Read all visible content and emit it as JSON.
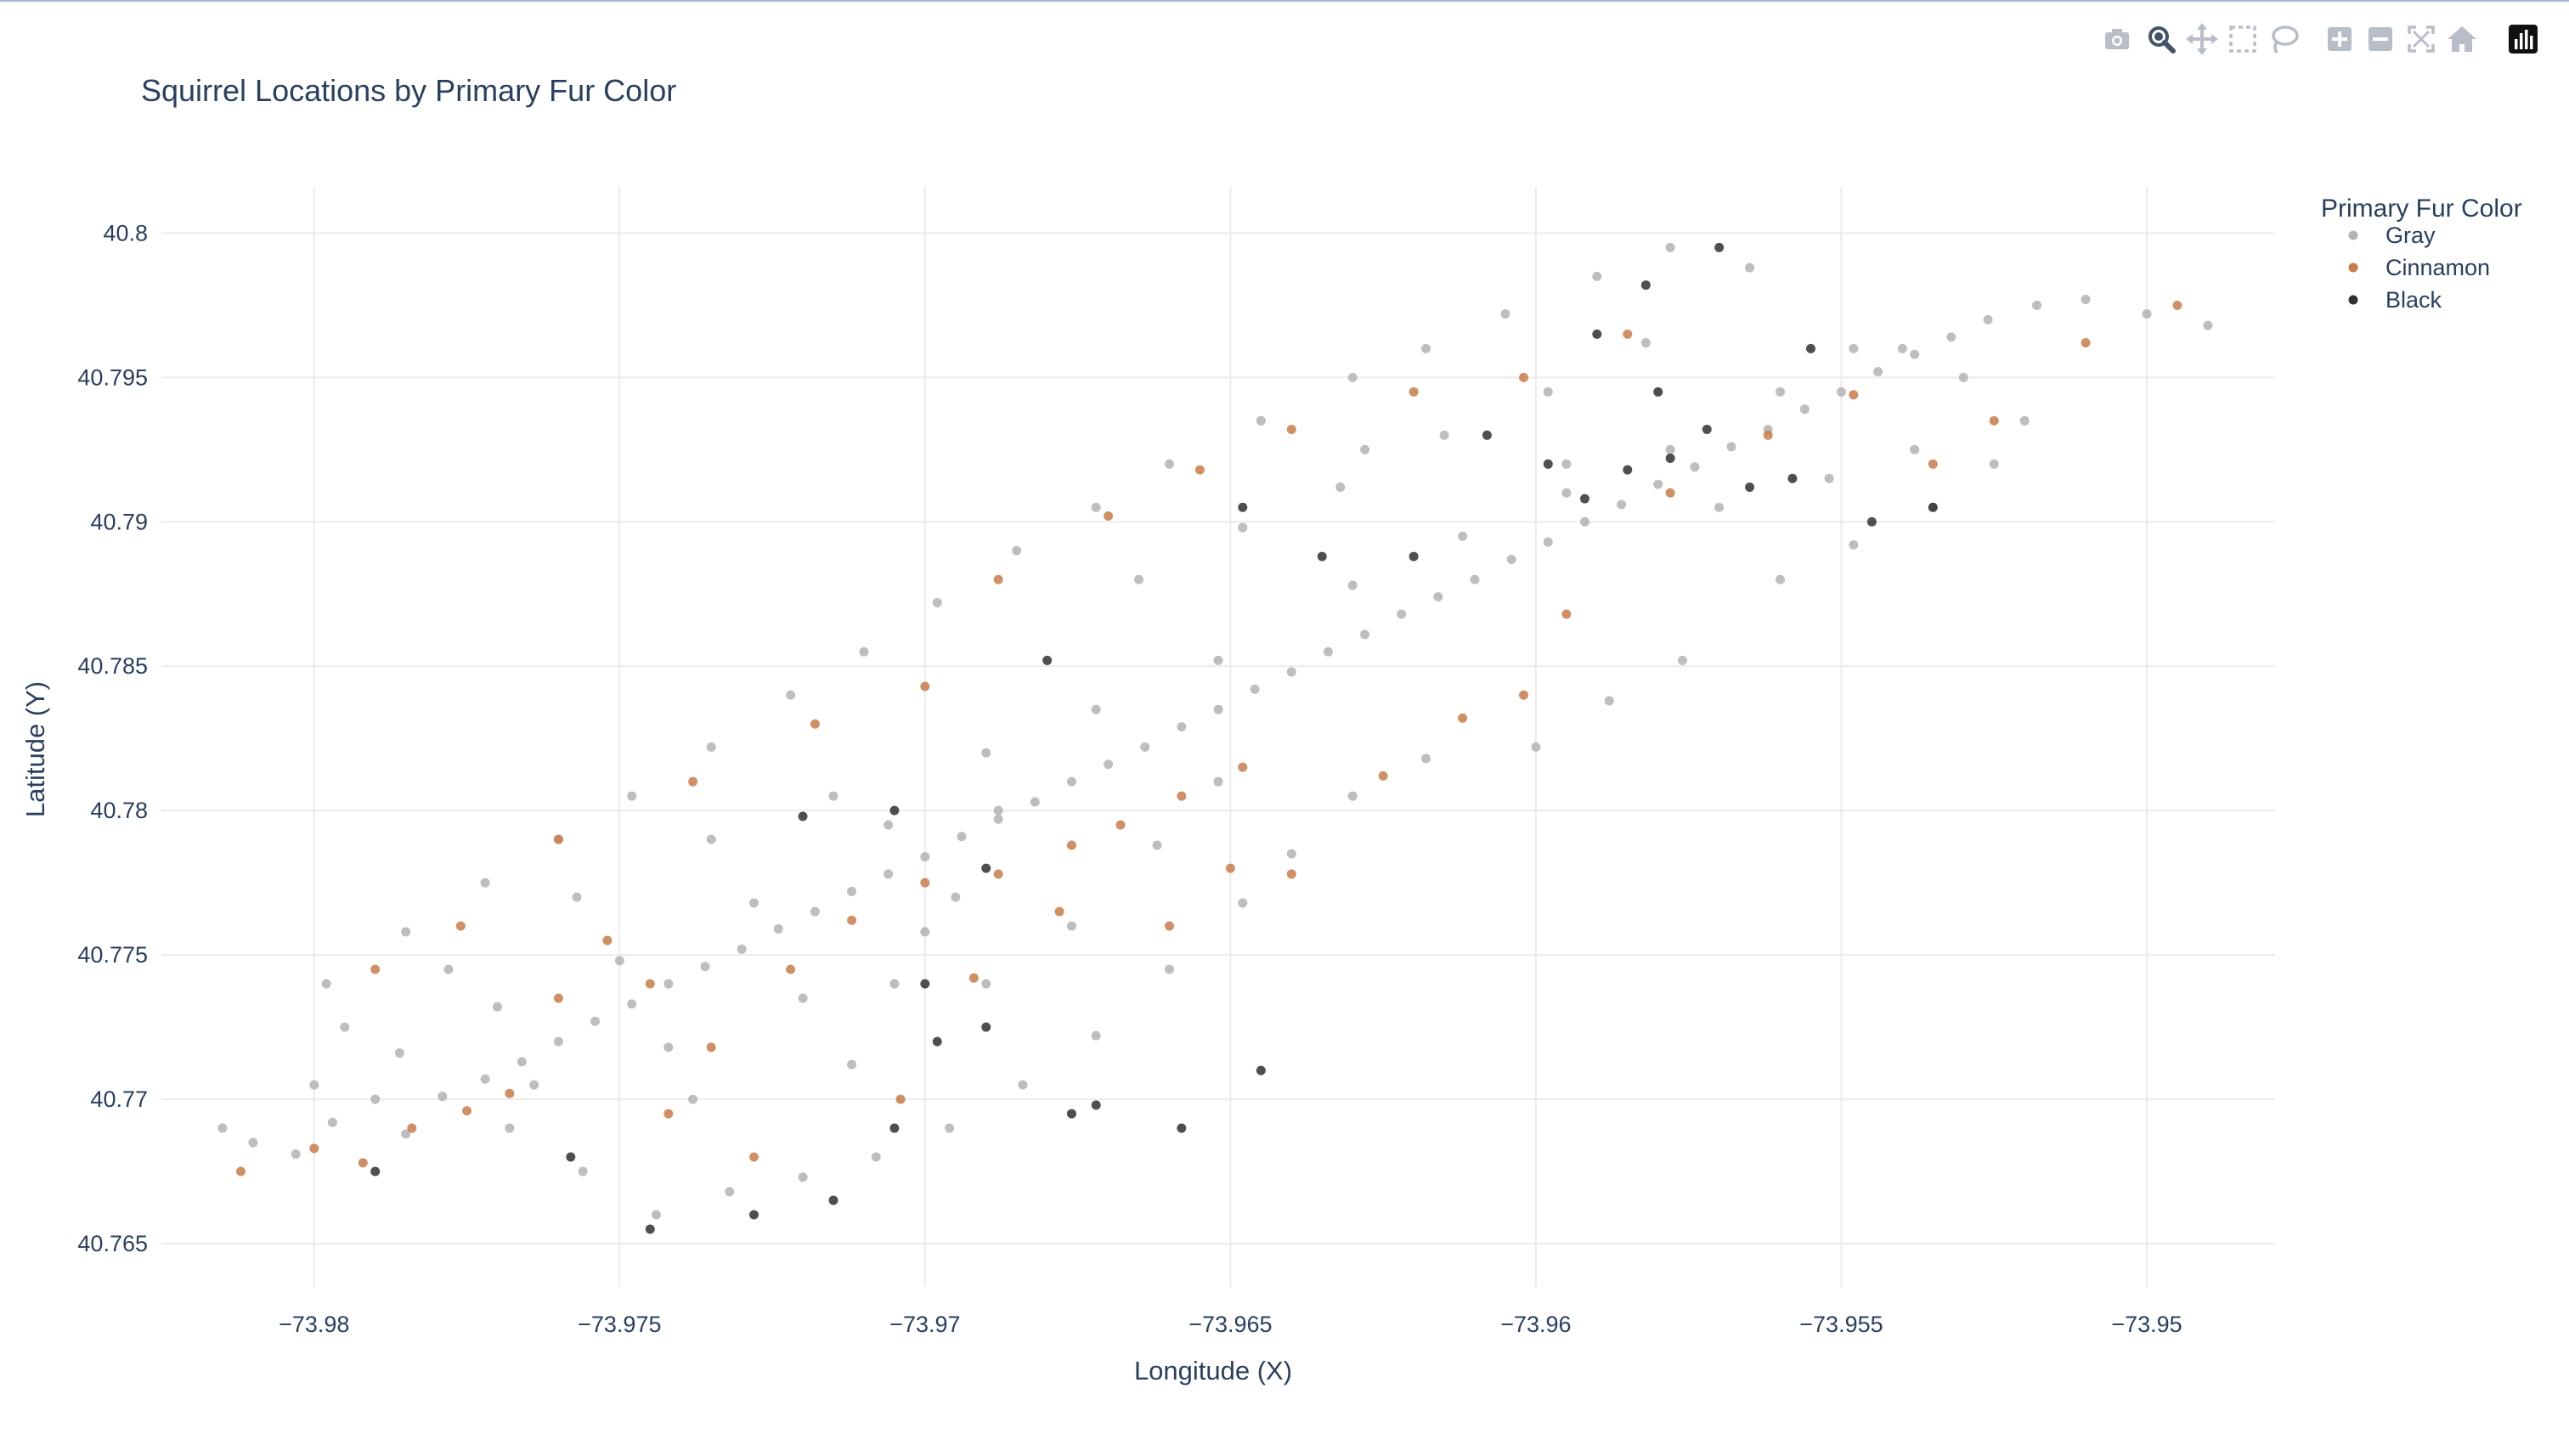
{
  "toolbar": {
    "buttons": [
      {
        "icon": "camera-icon",
        "label": "Download plot as a png"
      },
      {
        "icon": "zoom-icon",
        "label": "Zoom"
      },
      {
        "icon": "pan-icon",
        "label": "Pan"
      },
      {
        "icon": "box-select-icon",
        "label": "Box Select"
      },
      {
        "icon": "lasso-select-icon",
        "label": "Lasso Select"
      },
      {
        "icon": "zoom-in-icon",
        "label": "Zoom in"
      },
      {
        "icon": "zoom-out-icon",
        "label": "Zoom out"
      },
      {
        "icon": "autoscale-icon",
        "label": "Autoscale"
      },
      {
        "icon": "reset-axes-icon",
        "label": "Reset axes"
      },
      {
        "icon": "plotly-logo-icon",
        "label": "Produced with Plotly"
      }
    ]
  },
  "chart_data": {
    "type": "scatter",
    "title": "Squirrel Locations by Primary Fur Color",
    "xlabel": "Longitude (X)",
    "ylabel": "Latitude (Y)",
    "xlim": [
      -73.9825,
      -73.9479
    ],
    "ylim": [
      40.7635,
      40.8016
    ],
    "xticks": [
      -73.98,
      -73.975,
      -73.97,
      -73.965,
      -73.96,
      -73.955,
      -73.95
    ],
    "xtick_labels": [
      "−73.98",
      "−73.975",
      "−73.97",
      "−73.965",
      "−73.96",
      "−73.955",
      "−73.95"
    ],
    "yticks": [
      40.765,
      40.77,
      40.775,
      40.78,
      40.785,
      40.79,
      40.795,
      40.8
    ],
    "ytick_labels": [
      "40.765",
      "40.77",
      "40.775",
      "40.78",
      "40.785",
      "40.79",
      "40.795",
      "40.8"
    ],
    "grid": true,
    "legend": {
      "title": "Primary Fur Color",
      "position": "top-right"
    },
    "series": [
      {
        "name": "Gray",
        "color": "#b3b3b3",
        "points": [
          [
            -73.981,
            40.7685
          ],
          [
            -73.9803,
            40.7681
          ],
          [
            -73.9797,
            40.7692
          ],
          [
            -73.979,
            40.77
          ],
          [
            -73.9785,
            40.7688
          ],
          [
            -73.9779,
            40.7701
          ],
          [
            -73.9772,
            40.7707
          ],
          [
            -73.9766,
            40.7713
          ],
          [
            -73.976,
            40.772
          ],
          [
            -73.9754,
            40.7727
          ],
          [
            -73.9748,
            40.7733
          ],
          [
            -73.9742,
            40.774
          ],
          [
            -73.9736,
            40.7746
          ],
          [
            -73.973,
            40.7752
          ],
          [
            -73.9724,
            40.7759
          ],
          [
            -73.9718,
            40.7765
          ],
          [
            -73.9712,
            40.7772
          ],
          [
            -73.9706,
            40.7778
          ],
          [
            -73.97,
            40.7784
          ],
          [
            -73.9694,
            40.7791
          ],
          [
            -73.9688,
            40.7797
          ],
          [
            -73.9682,
            40.7803
          ],
          [
            -73.9676,
            40.781
          ],
          [
            -73.967,
            40.7816
          ],
          [
            -73.9664,
            40.7822
          ],
          [
            -73.9658,
            40.7829
          ],
          [
            -73.9652,
            40.7835
          ],
          [
            -73.9646,
            40.7842
          ],
          [
            -73.964,
            40.7848
          ],
          [
            -73.9634,
            40.7855
          ],
          [
            -73.9628,
            40.7861
          ],
          [
            -73.9622,
            40.7868
          ],
          [
            -73.9616,
            40.7874
          ],
          [
            -73.961,
            40.788
          ],
          [
            -73.9604,
            40.7887
          ],
          [
            -73.9598,
            40.7893
          ],
          [
            -73.9592,
            40.79
          ],
          [
            -73.9586,
            40.7906
          ],
          [
            -73.958,
            40.7913
          ],
          [
            -73.9574,
            40.7919
          ],
          [
            -73.9568,
            40.7926
          ],
          [
            -73.9562,
            40.7932
          ],
          [
            -73.9556,
            40.7939
          ],
          [
            -73.955,
            40.7945
          ],
          [
            -73.9544,
            40.7952
          ],
          [
            -73.9538,
            40.7958
          ],
          [
            -73.9532,
            40.7964
          ],
          [
            -73.9526,
            40.797
          ],
          [
            -73.9518,
            40.7975
          ],
          [
            -73.951,
            40.7977
          ],
          [
            -73.95,
            40.7972
          ],
          [
            -73.949,
            40.7968
          ],
          [
            -73.9756,
            40.7675
          ],
          [
            -73.9744,
            40.766
          ],
          [
            -73.9732,
            40.7668
          ],
          [
            -73.972,
            40.7673
          ],
          [
            -73.9708,
            40.768
          ],
          [
            -73.9696,
            40.769
          ],
          [
            -73.9684,
            40.7705
          ],
          [
            -73.9672,
            40.7722
          ],
          [
            -73.966,
            40.7745
          ],
          [
            -73.9648,
            40.7768
          ],
          [
            -73.964,
            40.7785
          ],
          [
            -73.963,
            40.7805
          ],
          [
            -73.9618,
            40.7818
          ],
          [
            -73.96,
            40.7822
          ],
          [
            -73.9588,
            40.7838
          ],
          [
            -73.9576,
            40.7852
          ],
          [
            -73.956,
            40.788
          ],
          [
            -73.9548,
            40.7892
          ],
          [
            -73.9535,
            40.7905
          ],
          [
            -73.9525,
            40.792
          ],
          [
            -73.952,
            40.7935
          ],
          [
            -73.954,
            40.796
          ],
          [
            -73.9565,
            40.7988
          ],
          [
            -73.9578,
            40.7995
          ],
          [
            -73.959,
            40.7985
          ],
          [
            -73.9605,
            40.7972
          ],
          [
            -73.9618,
            40.796
          ],
          [
            -73.963,
            40.795
          ],
          [
            -73.9645,
            40.7935
          ],
          [
            -73.966,
            40.792
          ],
          [
            -73.9672,
            40.7905
          ],
          [
            -73.9685,
            40.789
          ],
          [
            -73.9698,
            40.7872
          ],
          [
            -73.971,
            40.7855
          ],
          [
            -73.9722,
            40.784
          ],
          [
            -73.9735,
            40.7822
          ],
          [
            -73.9748,
            40.7805
          ],
          [
            -73.976,
            40.779
          ],
          [
            -73.9772,
            40.7775
          ],
          [
            -73.9785,
            40.7758
          ],
          [
            -73.9798,
            40.774
          ],
          [
            -73.9768,
            40.769
          ],
          [
            -73.9738,
            40.77
          ],
          [
            -73.9712,
            40.7712
          ],
          [
            -73.969,
            40.774
          ],
          [
            -73.9676,
            40.776
          ],
          [
            -73.9662,
            40.7788
          ],
          [
            -73.9652,
            40.781
          ],
          [
            -73.97,
            40.7758
          ],
          [
            -73.972,
            40.7735
          ],
          [
            -73.9742,
            40.7718
          ],
          [
            -73.9764,
            40.7705
          ],
          [
            -73.9786,
            40.7716
          ],
          [
            -73.977,
            40.7732
          ],
          [
            -73.975,
            40.7748
          ],
          [
            -73.9728,
            40.7768
          ],
          [
            -73.9706,
            40.7795
          ],
          [
            -73.969,
            40.782
          ],
          [
            -73.9672,
            40.7835
          ],
          [
            -73.9652,
            40.7852
          ],
          [
            -73.963,
            40.7878
          ],
          [
            -73.9612,
            40.7895
          ],
          [
            -73.9595,
            40.791
          ],
          [
            -73.9578,
            40.7925
          ],
          [
            -73.956,
            40.7945
          ],
          [
            -73.9548,
            40.796
          ],
          [
            -73.9582,
            40.7962
          ],
          [
            -73.9598,
            40.7945
          ],
          [
            -73.9615,
            40.793
          ],
          [
            -73.9632,
            40.7912
          ],
          [
            -73.9648,
            40.7898
          ],
          [
            -73.9665,
            40.788
          ],
          [
            -73.9628,
            40.7925
          ],
          [
            -73.9595,
            40.792
          ],
          [
            -73.957,
            40.7905
          ],
          [
            -73.9552,
            40.7915
          ],
          [
            -73.9538,
            40.7925
          ],
          [
            -73.953,
            40.795
          ],
          [
            -73.9705,
            40.774
          ],
          [
            -73.9695,
            40.777
          ],
          [
            -73.9688,
            40.78
          ],
          [
            -73.9715,
            40.7805
          ],
          [
            -73.9735,
            40.779
          ],
          [
            -73.9757,
            40.777
          ],
          [
            -73.9778,
            40.7745
          ],
          [
            -73.9795,
            40.7725
          ],
          [
            -73.98,
            40.7705
          ],
          [
            -73.9815,
            40.769
          ]
        ]
      },
      {
        "name": "Cinnamon",
        "color": "#c87d4a",
        "points": [
          [
            -73.9812,
            40.7675
          ],
          [
            -73.98,
            40.7683
          ],
          [
            -73.9792,
            40.7678
          ],
          [
            -73.9784,
            40.769
          ],
          [
            -73.9775,
            40.7696
          ],
          [
            -73.9768,
            40.7702
          ],
          [
            -73.976,
            40.7735
          ],
          [
            -73.9752,
            40.7755
          ],
          [
            -73.9745,
            40.774
          ],
          [
            -73.9735,
            40.7718
          ],
          [
            -73.9722,
            40.7745
          ],
          [
            -73.9712,
            40.7762
          ],
          [
            -73.97,
            40.7775
          ],
          [
            -73.9688,
            40.7778
          ],
          [
            -73.9676,
            40.7788
          ],
          [
            -73.9668,
            40.7795
          ],
          [
            -73.9658,
            40.7805
          ],
          [
            -73.9648,
            40.7815
          ],
          [
            -73.964,
            40.7778
          ],
          [
            -73.9625,
            40.7812
          ],
          [
            -73.9612,
            40.7832
          ],
          [
            -73.9602,
            40.784
          ],
          [
            -73.9595,
            40.7868
          ],
          [
            -73.9578,
            40.791
          ],
          [
            -73.9562,
            40.793
          ],
          [
            -73.9548,
            40.7944
          ],
          [
            -73.9535,
            40.792
          ],
          [
            -73.9525,
            40.7935
          ],
          [
            -73.951,
            40.7962
          ],
          [
            -73.9495,
            40.7975
          ],
          [
            -73.9585,
            40.7965
          ],
          [
            -73.9602,
            40.795
          ],
          [
            -73.962,
            40.7945
          ],
          [
            -73.964,
            40.7932
          ],
          [
            -73.9655,
            40.7918
          ],
          [
            -73.967,
            40.7902
          ],
          [
            -73.9688,
            40.788
          ],
          [
            -73.97,
            40.7843
          ],
          [
            -73.9718,
            40.783
          ],
          [
            -73.9738,
            40.781
          ],
          [
            -73.976,
            40.779
          ],
          [
            -73.9776,
            40.776
          ],
          [
            -73.979,
            40.7745
          ],
          [
            -73.9742,
            40.7695
          ],
          [
            -73.9728,
            40.768
          ],
          [
            -73.9704,
            40.77
          ],
          [
            -73.9692,
            40.7742
          ],
          [
            -73.9678,
            40.7765
          ],
          [
            -73.966,
            40.776
          ],
          [
            -73.965,
            40.778
          ]
        ]
      },
      {
        "name": "Black",
        "color": "#303030",
        "points": [
          [
            -73.979,
            40.7675
          ],
          [
            -73.9758,
            40.768
          ],
          [
            -73.9745,
            40.7655
          ],
          [
            -73.9728,
            40.766
          ],
          [
            -73.9715,
            40.7665
          ],
          [
            -73.9705,
            40.769
          ],
          [
            -73.9698,
            40.772
          ],
          [
            -73.969,
            40.7725
          ],
          [
            -73.9676,
            40.7695
          ],
          [
            -73.9672,
            40.7698
          ],
          [
            -73.9658,
            40.769
          ],
          [
            -73.9645,
            40.771
          ],
          [
            -73.97,
            40.774
          ],
          [
            -73.969,
            40.778
          ],
          [
            -73.9705,
            40.78
          ],
          [
            -73.972,
            40.7798
          ],
          [
            -73.968,
            40.7852
          ],
          [
            -73.9648,
            40.7905
          ],
          [
            -73.9635,
            40.7888
          ],
          [
            -73.962,
            40.7888
          ],
          [
            -73.9608,
            40.793
          ],
          [
            -73.9598,
            40.792
          ],
          [
            -73.9592,
            40.7908
          ],
          [
            -73.9585,
            40.7918
          ],
          [
            -73.9578,
            40.7922
          ],
          [
            -73.9572,
            40.7932
          ],
          [
            -73.9565,
            40.7912
          ],
          [
            -73.958,
            40.7945
          ],
          [
            -73.959,
            40.7965
          ],
          [
            -73.957,
            40.7995
          ],
          [
            -73.9582,
            40.7982
          ],
          [
            -73.9558,
            40.7915
          ],
          [
            -73.9545,
            40.79
          ],
          [
            -73.9535,
            40.7905
          ],
          [
            -73.9555,
            40.796
          ]
        ]
      }
    ]
  }
}
